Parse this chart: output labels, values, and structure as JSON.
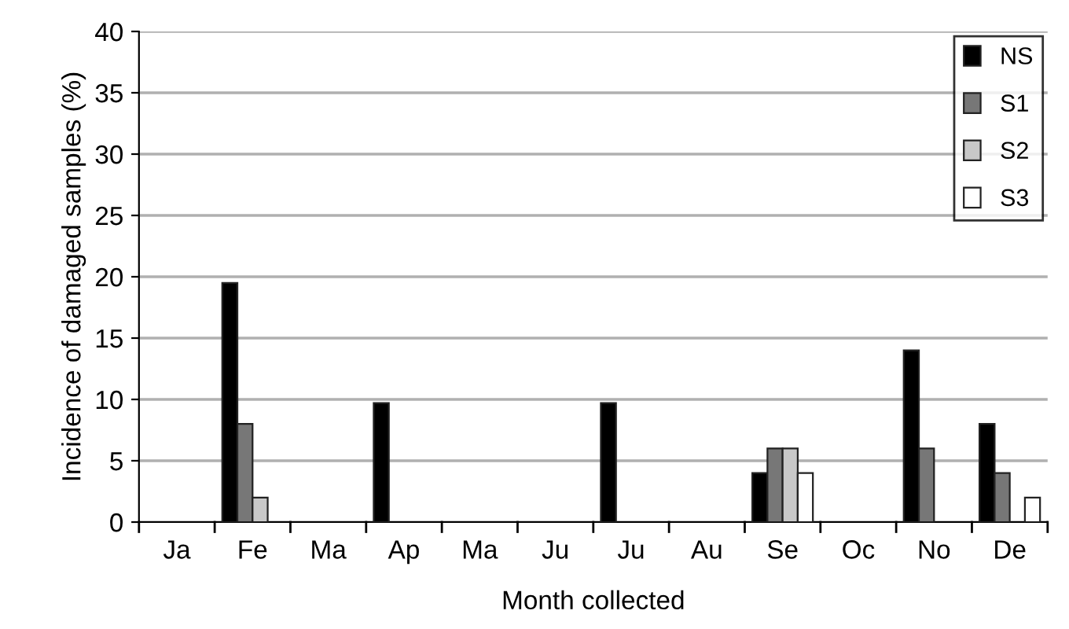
{
  "chart_data": {
    "type": "bar",
    "xlabel": "Month collected",
    "ylabel": "Incidence of damaged samples (%)",
    "categories": [
      "Ja",
      "Fe",
      "Ma",
      "Ap",
      "Ma",
      "Ju",
      "Ju",
      "Au",
      "Se",
      "Oc",
      "No",
      "De"
    ],
    "series": [
      {
        "name": "NS",
        "color": "#000000",
        "values": [
          0,
          19.5,
          0,
          9.7,
          0,
          0,
          9.7,
          0,
          4,
          0,
          14,
          8
        ]
      },
      {
        "name": "S1",
        "color": "#777777",
        "values": [
          0,
          8,
          0,
          0,
          0,
          0,
          0,
          0,
          6,
          0,
          6,
          4
        ]
      },
      {
        "name": "S2",
        "color": "#c8c8c8",
        "values": [
          0,
          2,
          0,
          0,
          0,
          0,
          0,
          0,
          6,
          0,
          0,
          0
        ]
      },
      {
        "name": "S3",
        "color": "#ffffff",
        "values": [
          0,
          0,
          0,
          0,
          0,
          0,
          0,
          0,
          4,
          0,
          0,
          2
        ]
      }
    ],
    "ylim": [
      0,
      40
    ],
    "yticks": [
      0,
      5,
      10,
      15,
      20,
      25,
      30,
      35,
      40
    ],
    "grid": "y",
    "legend": "top right"
  }
}
